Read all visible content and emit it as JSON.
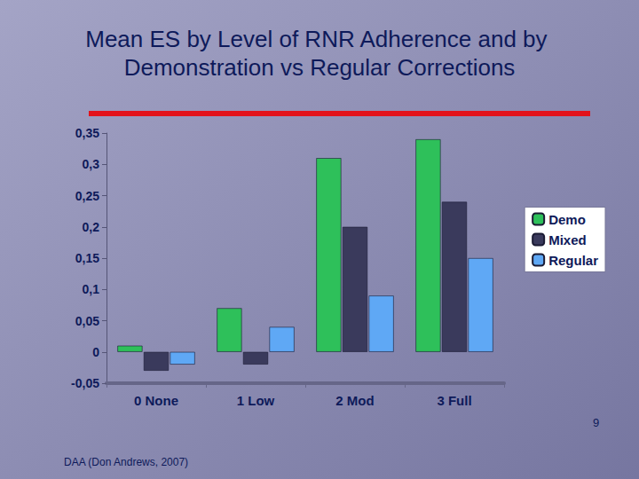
{
  "chart_data": {
    "type": "bar",
    "title": "Mean ES by Level of RNR Adherence and by Demonstration vs Regular Corrections",
    "categories": [
      "0 None",
      "1 Low",
      "2 Mod",
      "3 Full"
    ],
    "series": [
      {
        "name": "Demo",
        "color": "#2ec05a",
        "values": [
          0.01,
          0.07,
          0.31,
          0.34
        ]
      },
      {
        "name": "Mixed",
        "color": "#3a3a5c",
        "values": [
          -0.03,
          -0.02,
          0.2,
          0.24
        ]
      },
      {
        "name": "Regular",
        "color": "#5fa8f5",
        "values": [
          -0.02,
          0.04,
          0.09,
          0.15
        ]
      }
    ],
    "ylim": [
      -0.05,
      0.35
    ],
    "yticks": [
      {
        "value": -0.05,
        "label": "-0,05"
      },
      0,
      {
        "value": 0.05,
        "label": "0,05"
      },
      {
        "value": 0.1,
        "label": "0,1"
      },
      {
        "value": 0.15,
        "label": "0,15"
      },
      {
        "value": 0.2,
        "label": "0,2"
      },
      {
        "value": 0.25,
        "label": "0,25"
      },
      {
        "value": 0.3,
        "label": "0,3"
      },
      {
        "value": 0.35,
        "label": "0,35"
      }
    ],
    "grid": false,
    "legend": "right",
    "annotations": [
      "DAA (Don Andrews, 2007)",
      "9"
    ]
  }
}
